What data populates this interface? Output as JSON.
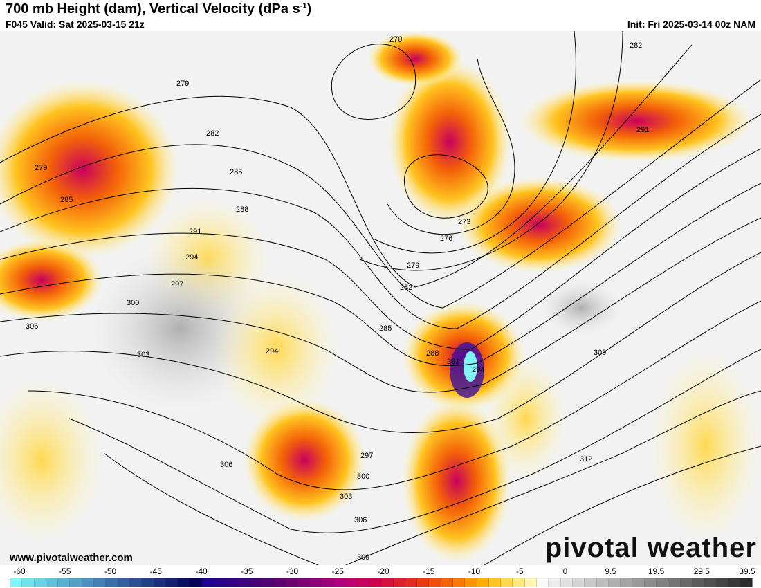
{
  "header": {
    "title": "700 mb Height (dam), Vertical Velocity (dPa s",
    "title_sup": "-1",
    "title_end": ")",
    "valid": "F045 Valid: Sat 2025-03-15 21z",
    "init": "Init: Fri 2025-03-14 00z NAM"
  },
  "footer": {
    "website": "www.pivotalweather.com",
    "logo": "pivotal weather"
  },
  "contour_labels": [
    "270",
    "282",
    "279",
    "282",
    "291",
    "279",
    "285",
    "285",
    "288",
    "291",
    "294",
    "273",
    "276",
    "279",
    "282",
    "297",
    "300",
    "285",
    "306",
    "303",
    "294",
    "288",
    "291",
    "294",
    "309",
    "297",
    "300",
    "303",
    "306",
    "306",
    "309",
    "312"
  ],
  "colorbar": {
    "ticks": [
      "-60",
      "-55",
      "-50",
      "-45",
      "-40",
      "-35",
      "-30",
      "-25",
      "-20",
      "-15",
      "-10",
      "-5",
      "0",
      "9.5",
      "19.5",
      "29.5",
      "39.5"
    ],
    "colors": [
      "#7ff5f5",
      "#72e0ea",
      "#6ad0e2",
      "#62c0da",
      "#5ab0d2",
      "#52a0c8",
      "#4a90c0",
      "#4280b6",
      "#3a70aa",
      "#32609e",
      "#2a5092",
      "#224086",
      "#1a307a",
      "#12206e",
      "#0a1062",
      "#060058",
      "#200090",
      "#2a0088",
      "#340082",
      "#3e007c",
      "#480078",
      "#540074",
      "#600070",
      "#6e0070",
      "#7e0074",
      "#8e0078",
      "#9e007c",
      "#ae0080",
      "#be0070",
      "#c8005e",
      "#d0004c",
      "#d8103c",
      "#de1e2e",
      "#e42a20",
      "#ea3a14",
      "#f04e0c",
      "#f46208",
      "#f87a04",
      "#fc9600",
      "#feb000",
      "#ffc420",
      "#ffd850",
      "#ffe880",
      "#fff5b0",
      "#f8f8f8",
      "#ececec",
      "#e0e0e0",
      "#d4d4d4",
      "#c8c8c8",
      "#bcbcbc",
      "#b0b0b0",
      "#a4a4a4",
      "#989898",
      "#8c8c8c",
      "#808080",
      "#747474",
      "#686868",
      "#5c5c5c",
      "#505050",
      "#444444",
      "#383838",
      "#2c2c2c"
    ]
  }
}
